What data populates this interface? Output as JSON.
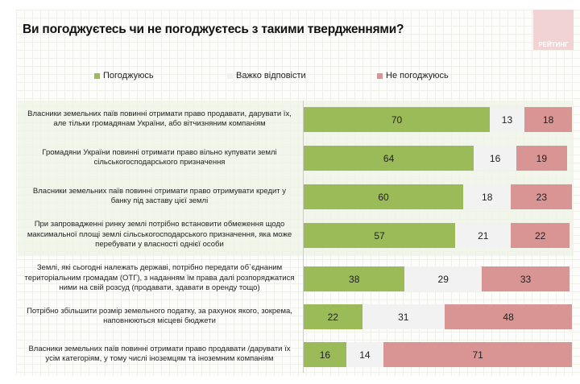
{
  "title": "Ви погоджуєтесь чи не погоджуєтесь з такими твердженнями?",
  "logo_text": "РЕЙТИНГ",
  "colors": {
    "agree": "#9bbb59",
    "hard": "#f2f2f2",
    "disagree": "#d99594"
  },
  "chart_data": {
    "type": "bar",
    "orientation": "horizontal-stacked",
    "legend_position": "top",
    "series_names": [
      "Погоджуюсь",
      "Важко відповісти",
      "Не погоджуюсь"
    ],
    "categories": [
      "Власники земельних паїв повинні отримати право продавати, дарувати їх, але тільки громадянам України, або вітчизняним компаніям",
      "Громадяни України повинні отримати право вільно купувати землі сільськогосподарського призначення",
      "Власники земельних паїв повинні отримати право отримувати кредит у банку під заставу цієї землі",
      "При запровадженні ринку землі потрібно встановити обмеження щодо максимальної площі землі сільськогосподарського призначення, яка може перебувати у власності однієї особи",
      "Землі, які сьогодні належать державі, потрібно передати об`єднаним територіальним громадам (ОТГ), з наданням їм права далі розпоряджатися ними на свій розсуд (продавати, здавати в оренду тощо)",
      "Потрібно  збільшити розмір земельного податку, за рахунок якого, зокрема, наповнюються місцеві бюджети",
      "Власники земельних паїв повинні отримати право продавати /дарувати їх усім категоріям, у тому числі іноземцям та іноземним компаніям"
    ],
    "series": [
      {
        "name": "Погоджуюсь",
        "values": [
          70,
          64,
          60,
          57,
          38,
          22,
          16
        ]
      },
      {
        "name": "Важко відповісти",
        "values": [
          13,
          16,
          18,
          21,
          29,
          31,
          14
        ]
      },
      {
        "name": "Не погоджуюсь",
        "values": [
          18,
          19,
          23,
          22,
          33,
          48,
          71
        ]
      }
    ]
  }
}
